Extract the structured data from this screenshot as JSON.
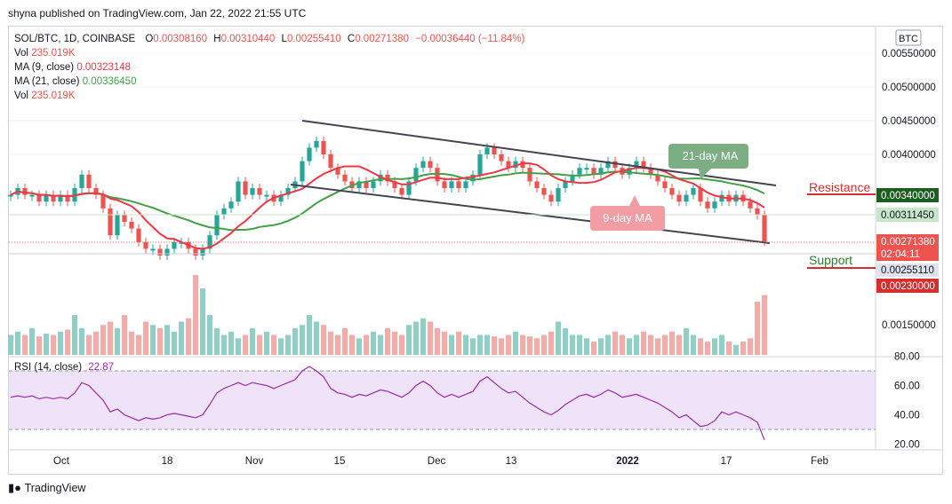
{
  "header": {
    "publish_text": "shyna published on TradingView.com, Jan 22, 2022 21:55 UTC"
  },
  "legend": {
    "symbol": "SOL/BTC, 1D, COINBASE",
    "o_label": "O",
    "o": "0.00308160",
    "h_label": "H",
    "h": "0.00310440",
    "l_label": "L",
    "l": "0.00255410",
    "c_label": "C",
    "c": "0.00271380",
    "change": "−0.00036440 (−11.84%)",
    "vol_label": "Vol",
    "vol_value": "235.019K",
    "ma9_label": "MA (9, close)",
    "ma9_value": "0.00323148",
    "ma21_label": "MA (21, close)",
    "ma21_value": "0.00336450",
    "vol2_label": "Vol",
    "vol2_value": "235.019K",
    "rsi_label": "RSI (14, close)",
    "rsi_value": "22.87"
  },
  "currency_badge": "BTC",
  "annotations": {
    "ma21": "21-day MA",
    "ma9": "9-day MA",
    "resistance": "Resistance",
    "support": "Support"
  },
  "price_tags": {
    "resistance": "0.00340000",
    "ma": "0.00311450",
    "current": "0.00271380",
    "countdown": "02:04:11",
    "support": "0.00255110",
    "support2": "0.00230000"
  },
  "colors": {
    "up": "#26a69a",
    "down": "#ef5350",
    "ma9": "#f23645",
    "ma21": "#43a047",
    "rsi": "#9c27b0",
    "rsi_band": "#efe3f9",
    "resistance": "#d32f2f",
    "support": "#2e7d32"
  },
  "footer": {
    "brand": "TradingView"
  },
  "chart_data": [
    {
      "type": "candlestick",
      "title": "SOL/BTC, 1D, COINBASE",
      "x_tick_labels": [
        "Oct",
        "18",
        "Nov",
        "15",
        "Dec",
        "13",
        "2022",
        "17",
        "Feb"
      ],
      "y_tick_labels": [
        "0.00550000",
        "0.00500000",
        "0.00450000",
        "0.00400000",
        "0.00150000"
      ],
      "ylim": [
        0.001,
        0.0058
      ],
      "close_series_approx": [
        0.0034,
        0.0035,
        0.0034,
        0.0034,
        0.0033,
        0.0034,
        0.0033,
        0.0034,
        0.0033,
        0.0035,
        0.0037,
        0.0035,
        0.0034,
        0.0032,
        0.0028,
        0.0031,
        0.003,
        0.0029,
        0.0027,
        0.0026,
        0.0026,
        0.0025,
        0.0026,
        0.0027,
        0.0027,
        0.0026,
        0.0025,
        0.0026,
        0.0028,
        0.0031,
        0.0032,
        0.0033,
        0.0036,
        0.0034,
        0.0035,
        0.0034,
        0.0034,
        0.0033,
        0.0034,
        0.0035,
        0.0036,
        0.0039,
        0.0041,
        0.0042,
        0.004,
        0.0038,
        0.0037,
        0.0036,
        0.0035,
        0.0036,
        0.0035,
        0.0036,
        0.0037,
        0.0036,
        0.0035,
        0.0034,
        0.0036,
        0.0038,
        0.0039,
        0.0038,
        0.0036,
        0.0035,
        0.0036,
        0.0035,
        0.0036,
        0.0037,
        0.004,
        0.0041,
        0.004,
        0.0039,
        0.0038,
        0.0039,
        0.0038,
        0.0036,
        0.0035,
        0.0034,
        0.0033,
        0.0035,
        0.0036,
        0.0037,
        0.0038,
        0.0038,
        0.0037,
        0.0038,
        0.0039,
        0.0038,
        0.0037,
        0.0038,
        0.0039,
        0.0038,
        0.0037,
        0.0036,
        0.0035,
        0.0034,
        0.0033,
        0.0034,
        0.0035,
        0.0033,
        0.0032,
        0.0033,
        0.0034,
        0.0033,
        0.0034,
        0.0033,
        0.0032,
        0.0031,
        0.00271
      ],
      "annotations": [
        "21-day MA",
        "9-day MA",
        "Resistance",
        "Support"
      ]
    },
    {
      "type": "bar",
      "title": "Vol",
      "values_relative_approx": [
        0.3,
        0.35,
        0.3,
        0.4,
        0.28,
        0.32,
        0.3,
        0.35,
        0.38,
        0.6,
        0.4,
        0.3,
        0.35,
        0.45,
        0.5,
        0.4,
        0.6,
        0.35,
        0.3,
        0.5,
        0.45,
        0.4,
        0.45,
        0.35,
        0.5,
        0.55,
        1.2,
        1.0,
        0.6,
        0.4,
        0.3,
        0.35,
        0.25,
        0.3,
        0.4,
        0.3,
        0.35,
        0.3,
        0.25,
        0.3,
        0.4,
        0.45,
        0.6,
        0.5,
        0.45,
        0.35,
        0.3,
        0.4,
        0.3,
        0.25,
        0.3,
        0.35,
        0.3,
        0.4,
        0.35,
        0.3,
        0.45,
        0.5,
        0.55,
        0.5,
        0.4,
        0.35,
        0.3,
        0.35,
        0.3,
        0.25,
        0.3,
        0.3,
        0.28,
        0.25,
        0.3,
        0.35,
        0.3,
        0.28,
        0.25,
        0.3,
        0.35,
        0.5,
        0.4,
        0.3,
        0.3,
        0.25,
        0.2,
        0.25,
        0.3,
        0.35,
        0.3,
        0.25,
        0.3,
        0.35,
        0.3,
        0.25,
        0.3,
        0.35,
        0.3,
        0.4,
        0.3,
        0.25,
        0.2,
        0.25,
        0.3,
        0.2,
        0.15,
        0.2,
        0.25,
        0.8,
        0.9
      ]
    },
    {
      "type": "line",
      "title": "RSI (14, close)",
      "y_tick_labels": [
        "80.00",
        "60.00",
        "40.00",
        "20.00"
      ],
      "ylim": [
        17,
        80
      ],
      "values_approx": [
        52,
        53,
        52,
        53,
        51,
        52,
        51,
        52,
        51,
        55,
        62,
        60,
        55,
        50,
        42,
        44,
        40,
        38,
        36,
        38,
        37,
        38,
        40,
        41,
        40,
        39,
        38,
        40,
        47,
        55,
        58,
        60,
        62,
        60,
        62,
        61,
        60,
        58,
        60,
        62,
        64,
        70,
        73,
        70,
        66,
        58,
        55,
        54,
        52,
        54,
        53,
        55,
        57,
        56,
        54,
        52,
        55,
        60,
        63,
        60,
        55,
        52,
        54,
        52,
        54,
        56,
        63,
        66,
        62,
        58,
        55,
        56,
        52,
        48,
        45,
        42,
        40,
        43,
        47,
        50,
        53,
        54,
        52,
        54,
        57,
        55,
        52,
        53,
        54,
        52,
        50,
        48,
        45,
        42,
        38,
        40,
        36,
        32,
        33,
        36,
        42,
        40,
        42,
        40,
        38,
        35,
        22.87
      ]
    }
  ]
}
